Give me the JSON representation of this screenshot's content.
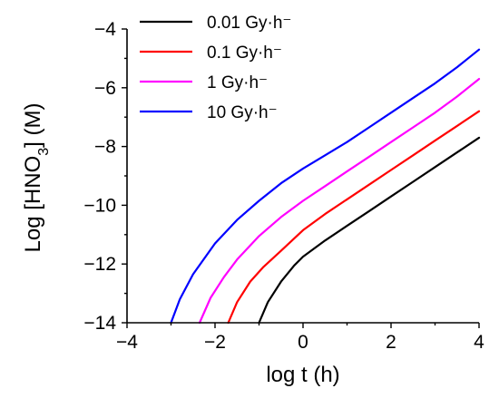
{
  "chart_data": {
    "type": "line",
    "xlabel": "log t (h)",
    "ylabel_main": "Log [HNO",
    "ylabel_sub": "3",
    "ylabel_end": "] (M)",
    "xlim": [
      -4,
      4
    ],
    "ylim": [
      -14,
      -4
    ],
    "x_ticks": [
      -4,
      -2,
      0,
      2,
      4
    ],
    "x_tick_labels": [
      "−4",
      "−2",
      "0",
      "2",
      "4"
    ],
    "y_ticks": [
      -14,
      -12,
      -10,
      -8,
      -6,
      -4
    ],
    "y_tick_labels": [
      "−14",
      "−12",
      "−10",
      "−8",
      "−6",
      "−4"
    ],
    "grid": false,
    "legend_position": "top-left",
    "series": [
      {
        "name": "0.01 Gy·h⁻",
        "color": "#000000",
        "x": [
          -1.0,
          -0.8,
          -0.5,
          -0.2,
          0.0,
          0.5,
          1.0,
          1.5,
          2.0,
          2.5,
          3.0,
          3.5,
          4.0
        ],
        "y": [
          -14.0,
          -13.3,
          -12.6,
          -12.05,
          -11.75,
          -11.2,
          -10.7,
          -10.2,
          -9.7,
          -9.2,
          -8.7,
          -8.2,
          -7.7
        ]
      },
      {
        "name": "0.1 Gy·h⁻",
        "color": "#ff0000",
        "x": [
          -1.7,
          -1.5,
          -1.2,
          -0.9,
          -0.5,
          0.0,
          0.5,
          1.0,
          1.5,
          2.0,
          2.5,
          3.0,
          3.5,
          4.0
        ],
        "y": [
          -14.0,
          -13.3,
          -12.6,
          -12.1,
          -11.55,
          -10.85,
          -10.3,
          -9.8,
          -9.3,
          -8.8,
          -8.3,
          -7.8,
          -7.3,
          -6.8
        ]
      },
      {
        "name": "1 Gy·h⁻",
        "color": "#ff00ff",
        "x": [
          -2.35,
          -2.1,
          -1.8,
          -1.5,
          -1.0,
          -0.5,
          0.0,
          0.5,
          1.0,
          1.5,
          2.0,
          2.5,
          3.0,
          3.5,
          4.0
        ],
        "y": [
          -14.0,
          -13.15,
          -12.45,
          -11.85,
          -11.05,
          -10.4,
          -9.85,
          -9.35,
          -8.85,
          -8.35,
          -7.85,
          -7.35,
          -6.85,
          -6.3,
          -5.7
        ]
      },
      {
        "name": "10 Gy·h⁻",
        "color": "#0000ff",
        "x": [
          -3.0,
          -2.8,
          -2.5,
          -2.0,
          -1.5,
          -1.0,
          -0.5,
          0.0,
          0.5,
          1.0,
          1.5,
          2.0,
          2.5,
          3.0,
          3.5,
          4.0
        ],
        "y": [
          -14.0,
          -13.2,
          -12.35,
          -11.3,
          -10.5,
          -9.85,
          -9.25,
          -8.75,
          -8.3,
          -7.85,
          -7.35,
          -6.85,
          -6.35,
          -5.85,
          -5.3,
          -4.7
        ]
      }
    ]
  }
}
